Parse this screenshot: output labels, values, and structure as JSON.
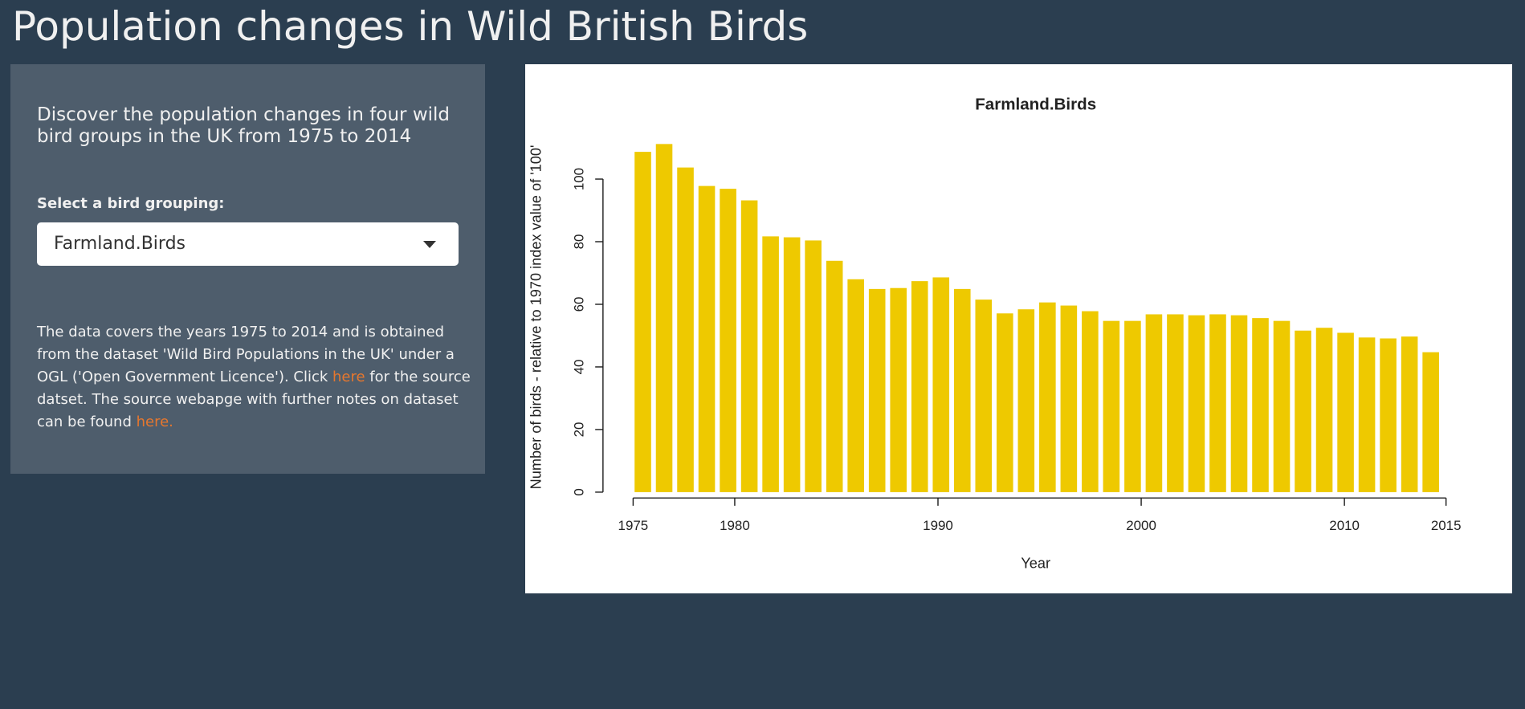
{
  "header": {
    "title": "Population changes in Wild British Birds"
  },
  "sidebar": {
    "intro": "Discover the population changes in four wild bird groups in the UK from 1975 to 2014",
    "select_label": "Select a bird grouping:",
    "select_value": "Farmland.Birds",
    "note": {
      "text_1": "The data covers the years 1975 to 2014 and is obtained from the dataset 'Wild Bird Populations in the UK' under a OGL ('Open Government Licence'). Click ",
      "link_1": "here",
      "text_2": " for the source datset. The source webapge with further notes on dataset can be found ",
      "link_2": "here."
    }
  },
  "chart_data": {
    "type": "bar",
    "title": "Farmland.Birds",
    "x_label": "Year",
    "y_label": "Number of birds - relative to 1970 index value of '100'",
    "values": [
      108.7,
      111.2,
      103.7,
      97.8,
      96.9,
      93.2,
      81.7,
      81.4,
      80.4,
      73.9,
      68.0,
      64.9,
      65.2,
      67.4,
      68.6,
      64.9,
      61.5,
      57.1,
      58.4,
      60.6,
      59.6,
      57.8,
      54.7,
      54.7,
      56.8,
      56.8,
      56.5,
      56.8,
      56.5,
      55.6,
      54.7,
      51.6,
      52.5,
      50.9,
      49.4,
      49.1,
      49.7,
      44.7
    ],
    "color": "#eec900",
    "xlim": [
      1975,
      2015
    ],
    "xticks": [
      1975,
      1980,
      1990,
      2000,
      2010,
      2015
    ],
    "ylim": [
      0,
      115
    ],
    "yticks": [
      0,
      20,
      40,
      60,
      80,
      100
    ]
  }
}
